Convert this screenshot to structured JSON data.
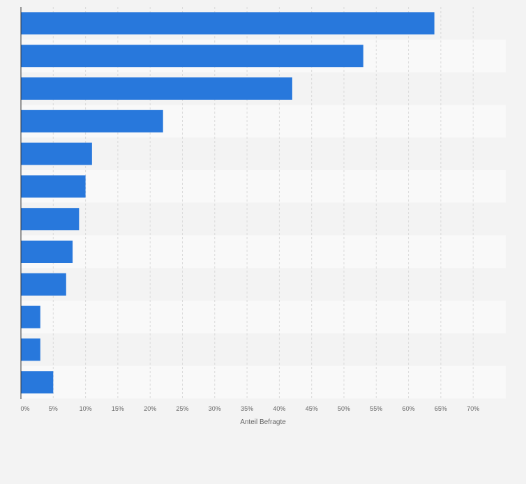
{
  "chart_data": {
    "type": "bar",
    "orientation": "horizontal",
    "title": "",
    "xlabel": "Anteil Befragte",
    "ylabel": "",
    "x_ticks": [
      "0%",
      "5%",
      "10%",
      "15%",
      "20%",
      "25%",
      "30%",
      "35%",
      "40%",
      "45%",
      "50%",
      "55%",
      "60%",
      "65%",
      "70%"
    ],
    "xlim": [
      0,
      75
    ],
    "grid": true,
    "values": [
      64,
      53,
      42,
      22,
      11,
      10,
      9,
      8,
      7,
      3,
      3,
      5
    ],
    "colors": {
      "bar": "#2878dc",
      "background": "#f3f3f3",
      "band_dark": "#f3f3f3",
      "band_light": "#f9f9f9",
      "grid": "#d9d9d9",
      "axis": "#333333",
      "tick_text": "#666666"
    }
  }
}
